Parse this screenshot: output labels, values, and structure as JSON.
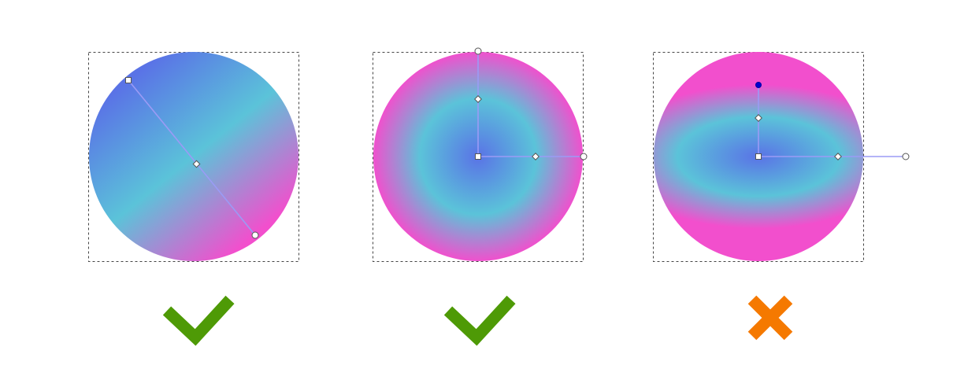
{
  "colors": {
    "blue": "#5a73e6",
    "cyan": "#5bc3d9",
    "magenta": "#f24fcd",
    "handle_line": "#9b9bf5",
    "selected_handle": "#0000d0",
    "check": "#4e9a06",
    "cross": "#f57900",
    "bbox": "#444444"
  },
  "examples": [
    {
      "gradient": "linear",
      "verdict": "correct",
      "verdict_icon": "checkmark-icon"
    },
    {
      "gradient": "radial-circular",
      "verdict": "correct",
      "verdict_icon": "checkmark-icon"
    },
    {
      "gradient": "radial-elliptical",
      "verdict": "incorrect",
      "verdict_icon": "cross-icon"
    }
  ]
}
